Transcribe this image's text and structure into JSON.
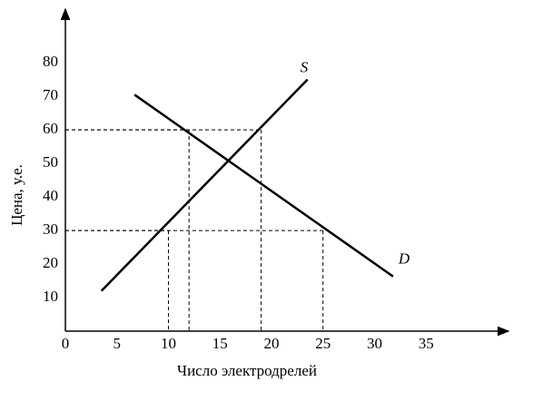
{
  "chart_data": {
    "type": "line",
    "x_label": "Число электродрелей",
    "y_label": "Цена, у.е.",
    "series": [
      {
        "name": "S",
        "color": "#000000",
        "x": [
          3.5,
          23.5
        ],
        "values": [
          12,
          75
        ]
      },
      {
        "name": "D",
        "color": "#000000",
        "x": [
          6.7,
          31.8
        ],
        "values": [
          70.5,
          16.3
        ]
      }
    ],
    "guides": [
      {
        "x": 12,
        "y": 60
      },
      {
        "x": 19,
        "y": 60
      },
      {
        "x": 10,
        "y": 30
      },
      {
        "x": 25,
        "y": 30
      }
    ],
    "xlim": [
      0,
      43
    ],
    "ylim": [
      0,
      96
    ],
    "xticks": [
      0,
      5,
      10,
      15,
      20,
      25,
      30,
      35
    ],
    "yticks": [
      10,
      20,
      30,
      40,
      50,
      60,
      70,
      80
    ],
    "grid": false
  }
}
